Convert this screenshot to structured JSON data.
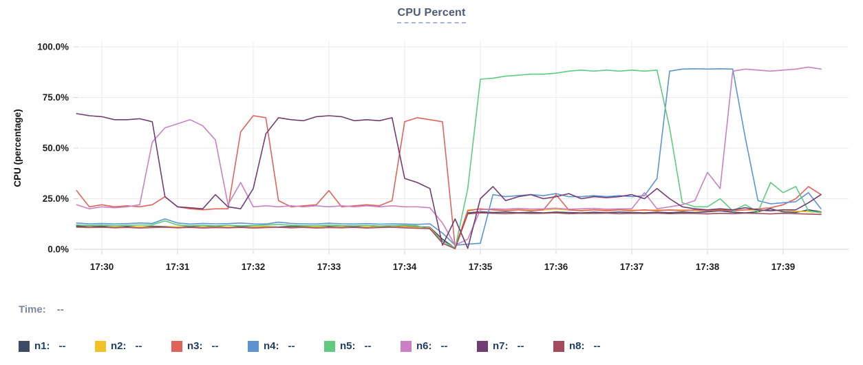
{
  "title": "CPU Percent",
  "time_row": {
    "label": "Time:",
    "value": "--"
  },
  "legend": {
    "items": [
      {
        "label": "n1:",
        "value": "--",
        "color": "#3d4b66"
      },
      {
        "label": "n2:",
        "value": "--",
        "color": "#f3c229"
      },
      {
        "label": "n3:",
        "value": "--",
        "color": "#e0635a"
      },
      {
        "label": "n4:",
        "value": "--",
        "color": "#5b94d1"
      },
      {
        "label": "n5:",
        "value": "--",
        "color": "#5ecb81"
      },
      {
        "label": "n6:",
        "value": "--",
        "color": "#cb80c5"
      },
      {
        "label": "n7:",
        "value": "--",
        "color": "#713c71"
      },
      {
        "label": "n8:",
        "value": "--",
        "color": "#a34b5e"
      }
    ]
  },
  "colors": {
    "title": "#4d5b77",
    "grid": "#eaeaec",
    "axis_line": "#e0e0e4",
    "tick_stub": "#cfd4da",
    "axis_text": "#1f1f1f",
    "time_label": "#7e899c",
    "legend_text": "#1e3c64"
  },
  "chart_data": {
    "type": "line",
    "title": "CPU Percent",
    "xlabel": "",
    "ylabel": "CPU (percentage)",
    "ylim": [
      0,
      100
    ],
    "grid": true,
    "legend_position": "bottom",
    "y_ticks": [
      0,
      25,
      50,
      75,
      100
    ],
    "y_tick_labels": [
      "0.0%",
      "25.0%",
      "50.0%",
      "75.0%",
      "100.0%"
    ],
    "x_tick_labels": [
      "17:30",
      "17:31",
      "17:32",
      "17:33",
      "17:34",
      "17:35",
      "17:36",
      "17:37",
      "17:38",
      "17:39"
    ],
    "x_start_minute": -0.3333,
    "x_step_minute": 0.16667,
    "series": [
      {
        "name": "n1",
        "color": "#3d4b66",
        "values": [
          11.5,
          11.2,
          11.4,
          11.0,
          11.3,
          11.1,
          11.4,
          11.2,
          11.0,
          11.3,
          11.1,
          11.4,
          11.0,
          11.2,
          11.1,
          11.3,
          11.0,
          11.4,
          11.2,
          11.0,
          11.3,
          11.1,
          11.2,
          11.0,
          11.3,
          11.1,
          11.5,
          11.2,
          10.8,
          5,
          0.5,
          18,
          18.5,
          18.2,
          18.4,
          18.1,
          18.3,
          18.0,
          18.4,
          18.2,
          18.0,
          18.3,
          18.1,
          18.4,
          18.2,
          18.0,
          18.3,
          18.1,
          18.4,
          18.2,
          18.5,
          19.0,
          18.3,
          18.0,
          18.5,
          20.0,
          18.5,
          18.2,
          19.5,
          18.5
        ]
      },
      {
        "name": "n2",
        "color": "#f3c229",
        "values": [
          10.9,
          11.0,
          10.8,
          11.1,
          10.9,
          11.2,
          10.8,
          11.0,
          11.1,
          10.8,
          11.0,
          10.9,
          11.1,
          10.8,
          11.0,
          11.2,
          10.9,
          10.8,
          11.0,
          11.1,
          10.9,
          11.0,
          10.8,
          11.1,
          10.9,
          11.0,
          11.2,
          10.9,
          10.5,
          4,
          0.6,
          19.5,
          19.8,
          19.5,
          19.2,
          19.6,
          19.3,
          19.5,
          19.8,
          19.4,
          19.2,
          19.5,
          19.3,
          19.6,
          19.4,
          19.2,
          19.5,
          19.3,
          19.5,
          19.2,
          19.0,
          19.4,
          19.1,
          19.5,
          19.2,
          19.0,
          19.3,
          18.8,
          18.5,
          18.3
        ]
      },
      {
        "name": "n3",
        "color": "#e0635a",
        "values": [
          29,
          21,
          22,
          21,
          21.5,
          21,
          22,
          26,
          21,
          20,
          19.5,
          20,
          20,
          58,
          66,
          65,
          24,
          21,
          21.5,
          22,
          29,
          21,
          21.5,
          22,
          21.5,
          24,
          63,
          65,
          64,
          63,
          1,
          19,
          20,
          19.5,
          19,
          19.5,
          19,
          19.5,
          27,
          19.5,
          19,
          19.5,
          19,
          19.5,
          19,
          19.5,
          19,
          19.5,
          19,
          19.5,
          19,
          19.5,
          19,
          19.5,
          20,
          20.5,
          22,
          25,
          31,
          27
        ]
      },
      {
        "name": "n4",
        "color": "#5b94d1",
        "values": [
          13,
          12.6,
          12.8,
          12.5,
          12.7,
          13,
          12.8,
          15,
          13,
          12.5,
          12.8,
          12.6,
          12.7,
          13,
          12.6,
          12.5,
          13.4,
          12.8,
          12.6,
          12.5,
          12.9,
          12.6,
          12.5,
          12.7,
          12.4,
          12.6,
          12.5,
          12.3,
          12.6,
          8,
          2,
          2.5,
          3,
          27,
          26,
          26.5,
          27,
          26.5,
          27.5,
          26,
          26,
          26.5,
          26,
          26.5,
          26,
          26.5,
          35,
          88,
          89,
          89.2,
          89,
          89.2,
          89,
          55,
          24,
          22.5,
          23,
          23.5,
          28,
          20
        ]
      },
      {
        "name": "n5",
        "color": "#5ecb81",
        "values": [
          12,
          11.8,
          12,
          11.6,
          11.9,
          12,
          12.1,
          14,
          12,
          11.6,
          11.9,
          11.6,
          11.9,
          11.6,
          11.8,
          12,
          12.3,
          11.9,
          11.7,
          11.6,
          12,
          11.7,
          11.6,
          11.8,
          11.5,
          11.7,
          11.9,
          11.6,
          10,
          4,
          0.5,
          30,
          84,
          84.5,
          85.5,
          86,
          86.5,
          86.5,
          87,
          88,
          88.5,
          88,
          88.5,
          88,
          88.5,
          88,
          88.5,
          60,
          23,
          21,
          21,
          25,
          19,
          22,
          18.5,
          33,
          28,
          31,
          19,
          18
        ]
      },
      {
        "name": "n6",
        "color": "#cb80c5",
        "values": [
          22,
          20,
          21,
          20.5,
          21,
          22,
          53,
          60,
          62,
          64,
          61,
          54,
          22,
          33,
          21,
          21.5,
          21,
          21.5,
          21,
          21.5,
          21,
          21.5,
          21,
          21.5,
          21,
          21.5,
          21,
          21,
          20.5,
          13,
          2,
          5,
          19.5,
          20,
          19.8,
          20.2,
          19.9,
          20,
          20.3,
          19.8,
          20,
          20.2,
          19.8,
          20,
          20,
          28,
          20,
          21,
          22,
          24,
          38,
          30,
          88,
          89,
          88.5,
          88,
          88.5,
          89,
          90,
          89
        ]
      },
      {
        "name": "n7",
        "color": "#713c71",
        "values": [
          67,
          66,
          65.5,
          64,
          64,
          64.5,
          63,
          26,
          21,
          20.5,
          20,
          27,
          21,
          20,
          30,
          57,
          65,
          64,
          63.5,
          65.5,
          66,
          65.5,
          63.5,
          64,
          63.5,
          65,
          35,
          33,
          30,
          2,
          15,
          0.5,
          25,
          31,
          24,
          26,
          27,
          25,
          26,
          27.5,
          25,
          26,
          25.5,
          26,
          27,
          25,
          30,
          25,
          21,
          20,
          19.5,
          20,
          19.5,
          20.5,
          19.5,
          19,
          19.5,
          19.5,
          23,
          27
        ]
      },
      {
        "name": "n8",
        "color": "#a34b5e",
        "values": [
          11,
          10.7,
          10.9,
          10.6,
          10.8,
          10.5,
          10.7,
          10.9,
          10.6,
          10.8,
          10.5,
          10.7,
          10.6,
          10.8,
          10.5,
          10.7,
          10.9,
          10.6,
          10.8,
          10.5,
          10.7,
          10.6,
          10.8,
          10.5,
          10.7,
          10.9,
          10.6,
          10.4,
          10.2,
          3,
          0.3,
          17.5,
          18,
          17.8,
          17.6,
          17.9,
          17.7,
          17.8,
          18,
          17.6,
          17.8,
          17.7,
          17.9,
          17.6,
          17.8,
          17.7,
          17.9,
          17.6,
          17.8,
          17.7,
          17.5,
          17.8,
          17.6,
          17.9,
          17.7,
          17.5,
          17.8,
          17.6,
          17.4,
          17.2
        ]
      }
    ]
  }
}
